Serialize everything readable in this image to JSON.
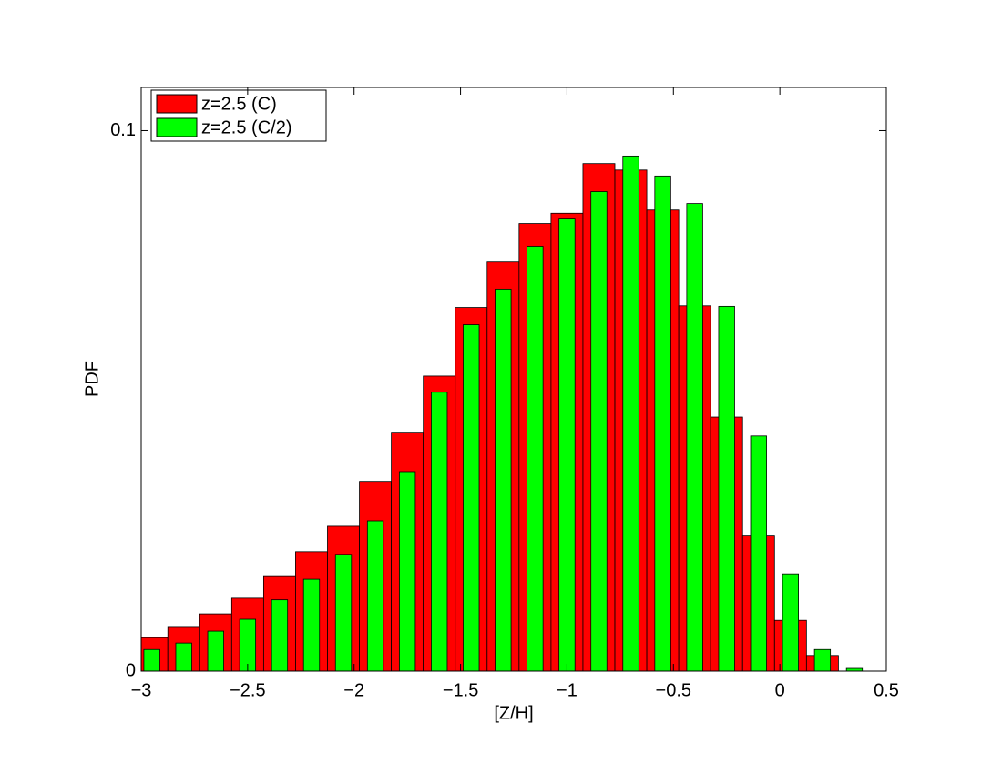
{
  "chart_data": {
    "type": "bar",
    "xlabel": "[Z/H]",
    "ylabel": "PDF",
    "x": [
      -2.95,
      -2.8,
      -2.65,
      -2.5,
      -2.35,
      -2.2,
      -2.05,
      -1.9,
      -1.75,
      -1.6,
      -1.45,
      -1.3,
      -1.15,
      -1.0,
      -0.85,
      -0.7,
      -0.55,
      -0.4,
      -0.25,
      -0.1,
      0.05,
      0.2,
      0.35
    ],
    "bar_spacing": 0.15,
    "series": [
      {
        "name": "z=2.5  (C)",
        "color": "#ff0000",
        "bar_width": 1.0,
        "values": [
          0.0062,
          0.0081,
          0.0106,
          0.0135,
          0.0175,
          0.0221,
          0.0268,
          0.0351,
          0.0442,
          0.0546,
          0.0673,
          0.0757,
          0.0828,
          0.0847,
          0.0939,
          0.0927,
          0.0853,
          0.0676,
          0.047,
          0.025,
          0.0094,
          0.0029,
          0
        ]
      },
      {
        "name": "z=2.5  (C/2)",
        "color": "#00ff00",
        "bar_width": 0.5,
        "values": [
          0.004,
          0.0052,
          0.0074,
          0.0096,
          0.0132,
          0.017,
          0.0216,
          0.0278,
          0.0369,
          0.0516,
          0.0641,
          0.0707,
          0.0786,
          0.0838,
          0.0887,
          0.0953,
          0.0916,
          0.0865,
          0.0675,
          0.0435,
          0.018,
          0.004,
          0.0005
        ]
      }
    ],
    "xlim": [
      -3,
      0.5
    ],
    "xticks": [
      {
        "value": -3,
        "label": "−3"
      },
      {
        "value": -2.5,
        "label": "−2.5"
      },
      {
        "value": -2,
        "label": "−2"
      },
      {
        "value": -1.5,
        "label": "−1.5"
      },
      {
        "value": -1,
        "label": "−1"
      },
      {
        "value": -0.5,
        "label": "−0.5"
      },
      0,
      0.5
    ],
    "ylim": [
      0,
      0.108
    ],
    "yticks": [
      0,
      0.1
    ],
    "legend": "upper-left"
  }
}
